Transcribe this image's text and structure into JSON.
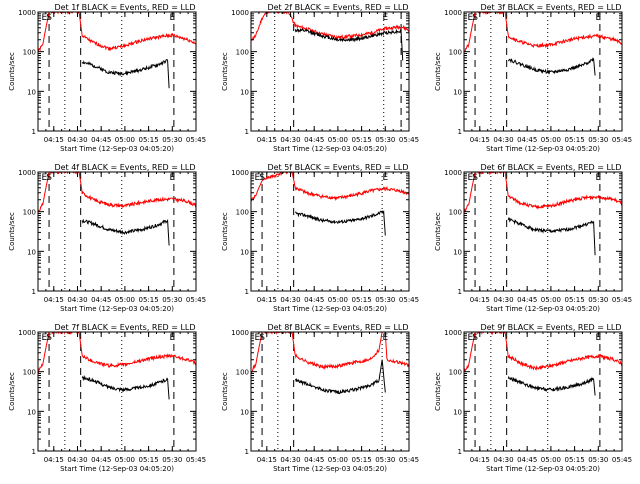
{
  "colors": {
    "events": "#000000",
    "lld": "#ff0000",
    "axes": "#000000",
    "background": "#ffffff"
  },
  "chart_data": [
    {
      "type": "line",
      "title": "Det 1f BLACK = Events, RED = LLD",
      "xlabel": "Start Time (12-Sep-03 04:05:20)",
      "ylabel": "Counts/sec",
      "yscale": "log",
      "ylim": [
        1,
        1000
      ],
      "x_ticks": [
        "04:15",
        "04:30",
        "04:45",
        "05:00",
        "05:15",
        "05:30",
        "05:45"
      ],
      "y_ticks": [
        "1",
        "10",
        "100",
        "1000"
      ],
      "markers": [
        {
          "label": "E",
          "time": "04:09"
        },
        {
          "label": "S",
          "time": "04:12"
        },
        {
          "label": "E",
          "time": "05:30"
        }
      ],
      "dotted_lines": [
        "04:22",
        "04:58"
      ],
      "dashed_lines": [
        "04:12",
        "04:32",
        "05:31"
      ],
      "series": [
        {
          "key": "lld",
          "x": [
            "04:05",
            "04:08",
            "04:10",
            "04:12",
            "04:13",
            "04:31",
            "04:33",
            "04:40",
            "04:50",
            "05:00",
            "05:10",
            "05:20",
            "05:30",
            "05:40",
            "05:45"
          ],
          "y": [
            100,
            150,
            400,
            1000,
            1000,
            1000,
            250,
            170,
            120,
            140,
            190,
            230,
            260,
            200,
            160
          ]
        },
        {
          "key": "events",
          "x": [
            "04:33",
            "04:40",
            "04:50",
            "05:00",
            "05:10",
            "05:20",
            "05:27",
            "05:28"
          ],
          "y": [
            55,
            45,
            30,
            28,
            35,
            45,
            60,
            12
          ]
        }
      ]
    },
    {
      "type": "line",
      "title": "Det 2f BLACK = Events, RED = LLD",
      "xlabel": "Start Time (12-Sep-03 04:05:20)",
      "ylabel": "Counts/sec",
      "yscale": "log",
      "ylim": [
        1,
        1000
      ],
      "x_ticks": [
        "04:15",
        "04:30",
        "04:45",
        "05:00",
        "05:15",
        "05:30",
        "05:45"
      ],
      "y_ticks": [
        "1",
        "10",
        "100",
        "1000"
      ],
      "markers": [
        {
          "label": "E",
          "time": "05:30"
        }
      ],
      "dotted_lines": [
        "04:20",
        "05:29"
      ],
      "dashed_lines": [
        "04:32",
        "05:40"
      ],
      "series": [
        {
          "key": "lld",
          "x": [
            "04:05",
            "04:08",
            "04:12",
            "04:15",
            "04:22",
            "04:29",
            "04:33",
            "04:40",
            "04:50",
            "05:00",
            "05:10",
            "05:20",
            "05:30",
            "05:40",
            "05:45"
          ],
          "y": [
            200,
            250,
            700,
            1000,
            1000,
            1000,
            450,
            380,
            280,
            230,
            250,
            290,
            380,
            430,
            350
          ]
        },
        {
          "key": "events",
          "x": [
            "04:33",
            "04:40",
            "04:50",
            "05:00",
            "05:10",
            "05:20",
            "05:30",
            "05:40",
            "05:41"
          ],
          "y": [
            350,
            330,
            250,
            200,
            200,
            240,
            300,
            330,
            60
          ]
        }
      ]
    },
    {
      "type": "line",
      "title": "Det 3f BLACK = Events, RED = LLD",
      "xlabel": "Start Time (12-Sep-03 04:05:20)",
      "ylabel": "Counts/sec",
      "yscale": "log",
      "ylim": [
        1,
        1000
      ],
      "x_ticks": [
        "04:15",
        "04:30",
        "04:45",
        "05:00",
        "05:15",
        "05:30",
        "05:45"
      ],
      "y_ticks": [
        "1",
        "10",
        "100",
        "1000"
      ],
      "markers": [
        {
          "label": "E",
          "time": "04:09"
        },
        {
          "label": "S",
          "time": "04:12"
        },
        {
          "label": "E",
          "time": "05:30"
        }
      ],
      "dotted_lines": [
        "04:22",
        "04:58"
      ],
      "dashed_lines": [
        "04:12",
        "04:32",
        "05:31"
      ],
      "series": [
        {
          "key": "lld",
          "x": [
            "04:05",
            "04:08",
            "04:10",
            "04:12",
            "04:13",
            "04:31",
            "04:33",
            "04:40",
            "04:50",
            "05:00",
            "05:10",
            "05:20",
            "05:30",
            "05:40",
            "05:45"
          ],
          "y": [
            100,
            150,
            400,
            1000,
            1000,
            1000,
            250,
            180,
            140,
            150,
            190,
            230,
            250,
            200,
            160
          ]
        },
        {
          "key": "events",
          "x": [
            "04:33",
            "04:40",
            "04:50",
            "05:00",
            "05:10",
            "05:20",
            "05:27",
            "05:28"
          ],
          "y": [
            65,
            50,
            35,
            30,
            35,
            45,
            65,
            25
          ]
        }
      ]
    },
    {
      "type": "line",
      "title": "Det 4f BLACK = Events, RED = LLD",
      "xlabel": "Start Time (12-Sep-03 04:05:20)",
      "ylabel": "Counts/sec",
      "yscale": "log",
      "ylim": [
        1,
        1000
      ],
      "x_ticks": [
        "04:15",
        "04:30",
        "04:45",
        "05:00",
        "05:15",
        "05:30",
        "05:45"
      ],
      "y_ticks": [
        "1",
        "10",
        "100",
        "1000"
      ],
      "markers": [
        {
          "label": "E",
          "time": "04:09"
        },
        {
          "label": "S",
          "time": "04:12"
        },
        {
          "label": "E",
          "time": "05:30"
        }
      ],
      "dotted_lines": [
        "04:22",
        "04:58"
      ],
      "dashed_lines": [
        "04:12",
        "04:32",
        "05:31"
      ],
      "series": [
        {
          "key": "lld",
          "x": [
            "04:05",
            "04:08",
            "04:10",
            "04:12",
            "04:13",
            "04:31",
            "04:33",
            "04:40",
            "04:50",
            "05:00",
            "05:10",
            "05:20",
            "05:30",
            "05:40",
            "05:45"
          ],
          "y": [
            100,
            150,
            400,
            1000,
            1000,
            1000,
            300,
            200,
            150,
            140,
            170,
            200,
            210,
            180,
            140
          ]
        },
        {
          "key": "events",
          "x": [
            "04:33",
            "04:40",
            "04:50",
            "05:00",
            "05:10",
            "05:20",
            "05:27",
            "05:28"
          ],
          "y": [
            60,
            50,
            35,
            30,
            35,
            45,
            60,
            14
          ]
        }
      ]
    },
    {
      "type": "line",
      "title": "Det 5f BLACK = Events, RED = LLD",
      "xlabel": "Start Time (12-Sep-03 04:05:20)",
      "ylabel": "Counts/sec",
      "yscale": "log",
      "ylim": [
        1,
        1000
      ],
      "x_ticks": [
        "04:15",
        "04:30",
        "04:45",
        "05:00",
        "05:15",
        "05:30",
        "05:45"
      ],
      "y_ticks": [
        "1",
        "10",
        "100",
        "1000"
      ],
      "markers": [
        {
          "label": "E",
          "time": "04:09"
        },
        {
          "label": "S",
          "time": "04:12"
        },
        {
          "label": "E",
          "time": "05:30"
        }
      ],
      "dotted_lines": [
        "04:22",
        "05:28"
      ],
      "dashed_lines": [
        "04:12",
        "04:32"
      ],
      "series": [
        {
          "key": "lld",
          "x": [
            "04:05",
            "04:08",
            "04:10",
            "04:12",
            "04:14",
            "04:20",
            "04:25",
            "04:31",
            "04:33",
            "04:40",
            "04:50",
            "05:00",
            "05:10",
            "05:20",
            "05:30",
            "05:40",
            "05:45"
          ],
          "y": [
            200,
            250,
            400,
            600,
            700,
            800,
            1000,
            1000,
            400,
            300,
            240,
            220,
            260,
            330,
            380,
            330,
            280
          ]
        },
        {
          "key": "events",
          "x": [
            "04:33",
            "04:40",
            "04:50",
            "05:00",
            "05:10",
            "05:20",
            "05:29",
            "05:30"
          ],
          "y": [
            90,
            80,
            60,
            55,
            60,
            75,
            100,
            25
          ]
        }
      ]
    },
    {
      "type": "line",
      "title": "Det 6f BLACK = Events, RED = LLD",
      "xlabel": "Start Time (12-Sep-03 04:05:20)",
      "ylabel": "Counts/sec",
      "yscale": "log",
      "ylim": [
        1,
        1000
      ],
      "x_ticks": [
        "04:15",
        "04:30",
        "04:45",
        "05:00",
        "05:15",
        "05:30",
        "05:45"
      ],
      "y_ticks": [
        "1",
        "10",
        "100",
        "1000"
      ],
      "markers": [
        {
          "label": "E",
          "time": "04:09"
        },
        {
          "label": "S",
          "time": "04:12"
        },
        {
          "label": "E",
          "time": "05:30"
        }
      ],
      "dotted_lines": [
        "04:22",
        "04:58"
      ],
      "dashed_lines": [
        "04:12",
        "04:32",
        "05:31"
      ],
      "series": [
        {
          "key": "lld",
          "x": [
            "04:05",
            "04:08",
            "04:10",
            "04:12",
            "04:13",
            "04:31",
            "04:33",
            "04:40",
            "04:50",
            "05:00",
            "05:10",
            "05:20",
            "05:30",
            "05:40",
            "05:45"
          ],
          "y": [
            100,
            150,
            400,
            1000,
            1000,
            1000,
            250,
            170,
            130,
            140,
            180,
            220,
            240,
            200,
            160
          ]
        },
        {
          "key": "events",
          "x": [
            "04:33",
            "04:40",
            "04:50",
            "05:00",
            "05:10",
            "05:20",
            "05:27",
            "05:28"
          ],
          "y": [
            65,
            50,
            35,
            32,
            35,
            45,
            55,
            8
          ]
        }
      ]
    },
    {
      "type": "line",
      "title": "Det 7f BLACK = Events, RED = LLD",
      "xlabel": "Start Time (12-Sep-03 04:05:20)",
      "ylabel": "Counts/sec",
      "yscale": "log",
      "ylim": [
        1,
        1000
      ],
      "x_ticks": [
        "04:15",
        "04:30",
        "04:45",
        "05:00",
        "05:15",
        "05:30",
        "05:45"
      ],
      "y_ticks": [
        "1",
        "10",
        "100",
        "1000"
      ],
      "markers": [
        {
          "label": "E",
          "time": "04:09"
        },
        {
          "label": "S",
          "time": "04:12"
        },
        {
          "label": "E",
          "time": "05:30"
        }
      ],
      "dotted_lines": [
        "04:22",
        "04:58"
      ],
      "dashed_lines": [
        "04:12",
        "04:32",
        "05:31"
      ],
      "series": [
        {
          "key": "lld",
          "x": [
            "04:05",
            "04:08",
            "04:10",
            "04:12",
            "04:13",
            "04:31",
            "04:33",
            "04:40",
            "04:50",
            "05:00",
            "05:10",
            "05:20",
            "05:30",
            "05:40",
            "05:45"
          ],
          "y": [
            100,
            150,
            400,
            1000,
            1000,
            1000,
            250,
            180,
            140,
            150,
            190,
            230,
            250,
            200,
            160
          ]
        },
        {
          "key": "events",
          "x": [
            "04:33",
            "04:40",
            "04:50",
            "05:00",
            "05:10",
            "05:20",
            "05:27",
            "05:28"
          ],
          "y": [
            70,
            60,
            40,
            35,
            40,
            50,
            65,
            20
          ]
        }
      ]
    },
    {
      "type": "line",
      "title": "Det 8f BLACK = Events, RED = LLD",
      "xlabel": "Start Time (12-Sep-03 04:05:20)",
      "ylabel": "Counts/sec",
      "yscale": "log",
      "ylim": [
        1,
        1000
      ],
      "x_ticks": [
        "04:15",
        "04:30",
        "04:45",
        "05:00",
        "05:15",
        "05:30",
        "05:45"
      ],
      "y_ticks": [
        "1",
        "10",
        "100",
        "1000"
      ],
      "markers": [
        {
          "label": "E",
          "time": "04:09"
        },
        {
          "label": "S",
          "time": "04:12"
        },
        {
          "label": "E",
          "time": "05:30"
        }
      ],
      "dotted_lines": [
        "04:22",
        "05:28"
      ],
      "dashed_lines": [
        "04:12",
        "04:32"
      ],
      "series": [
        {
          "key": "lld",
          "x": [
            "04:05",
            "04:08",
            "04:10",
            "04:12",
            "04:13",
            "04:31",
            "04:33",
            "04:40",
            "04:50",
            "05:00",
            "05:10",
            "05:20",
            "05:26",
            "05:28",
            "05:30",
            "05:31",
            "05:40",
            "05:45"
          ],
          "y": [
            100,
            150,
            400,
            1000,
            1000,
            1000,
            250,
            180,
            130,
            140,
            170,
            200,
            350,
            1000,
            1000,
            200,
            170,
            140
          ]
        },
        {
          "key": "events",
          "x": [
            "04:33",
            "04:40",
            "04:50",
            "05:00",
            "05:10",
            "05:20",
            "05:26",
            "05:28",
            "05:30"
          ],
          "y": [
            60,
            50,
            35,
            30,
            35,
            45,
            60,
            200,
            30
          ]
        }
      ]
    },
    {
      "type": "line",
      "title": "Det 9f BLACK = Events, RED = LLD",
      "xlabel": "Start Time (12-Sep-03 04:05:20)",
      "ylabel": "Counts/sec",
      "yscale": "log",
      "ylim": [
        1,
        1000
      ],
      "x_ticks": [
        "04:15",
        "04:30",
        "04:45",
        "05:00",
        "05:15",
        "05:30",
        "05:45"
      ],
      "y_ticks": [
        "1",
        "10",
        "100",
        "1000"
      ],
      "markers": [
        {
          "label": "E",
          "time": "04:09"
        },
        {
          "label": "S",
          "time": "04:12"
        },
        {
          "label": "E",
          "time": "05:30"
        }
      ],
      "dotted_lines": [
        "04:22",
        "04:58"
      ],
      "dashed_lines": [
        "04:12",
        "04:32",
        "05:31"
      ],
      "series": [
        {
          "key": "lld",
          "x": [
            "04:05",
            "04:08",
            "04:10",
            "04:12",
            "04:13",
            "04:31",
            "04:33",
            "04:40",
            "04:50",
            "05:00",
            "05:10",
            "05:20",
            "05:30",
            "05:40",
            "05:45"
          ],
          "y": [
            100,
            150,
            400,
            1000,
            1000,
            1000,
            250,
            170,
            120,
            140,
            180,
            220,
            250,
            200,
            160
          ]
        },
        {
          "key": "events",
          "x": [
            "04:33",
            "04:40",
            "04:50",
            "05:00",
            "05:10",
            "05:20",
            "05:27",
            "05:28"
          ],
          "y": [
            70,
            55,
            38,
            35,
            40,
            50,
            65,
            25
          ]
        }
      ]
    }
  ]
}
